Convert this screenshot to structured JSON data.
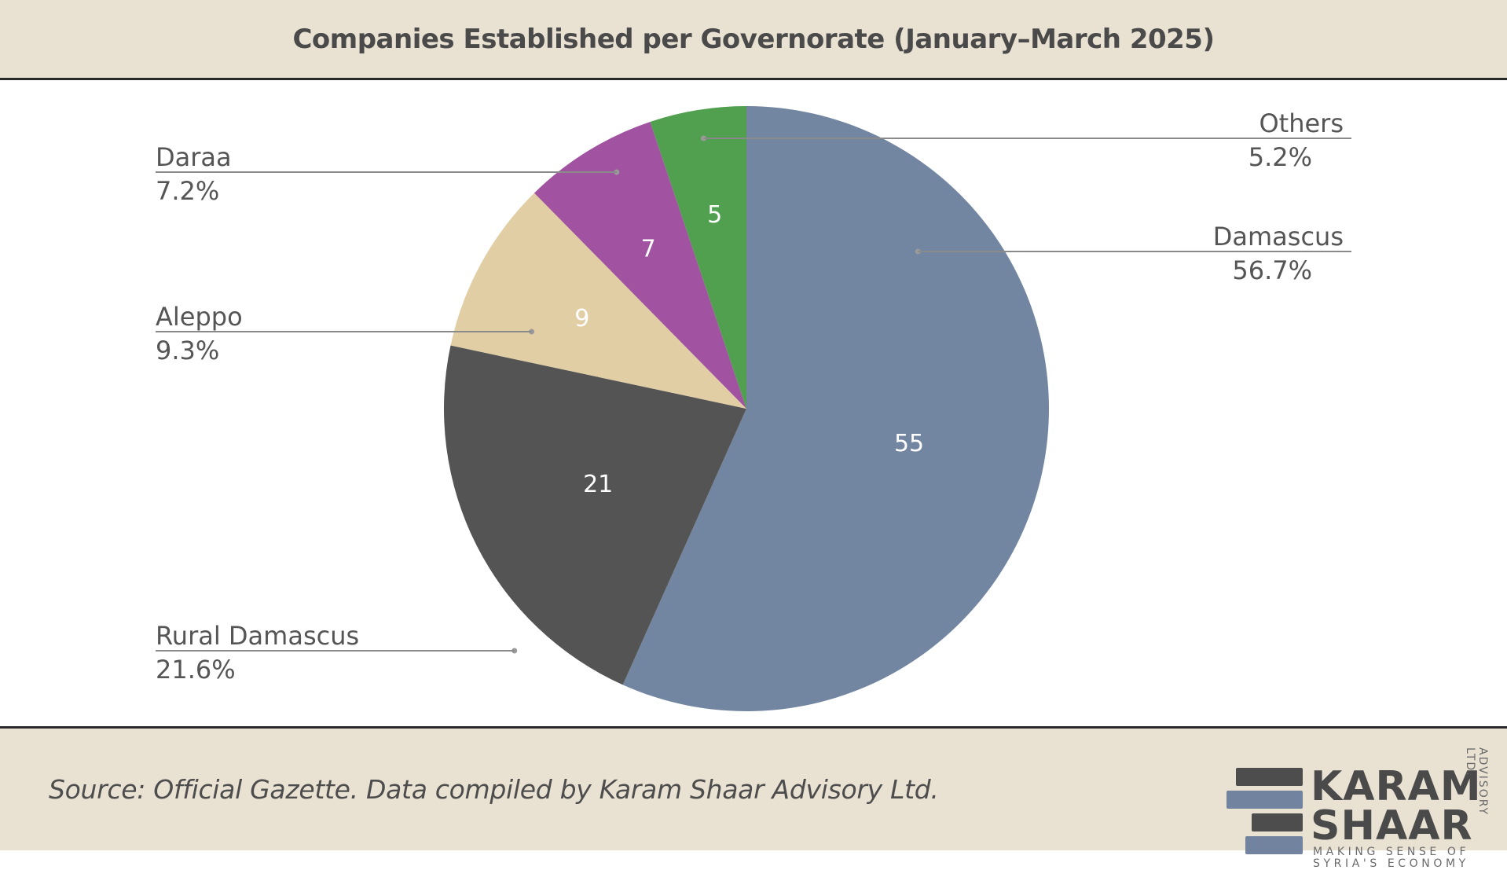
{
  "header": {
    "title": "Companies Established per Governorate (January–March 2025)"
  },
  "footer": {
    "source": "Source: Official Gazette. Data compiled by Karam Shaar Advisory Ltd.",
    "logo": {
      "line1": "KARAM",
      "line2": "SHAAR",
      "tagline1": "MAKING SENSE OF",
      "tagline2": "SYRIA'S ECONOMY",
      "vertical": "ADVISORY LTD."
    }
  },
  "colors": {
    "header_bg": "#e9e2d3",
    "logo_dark": "#4d4d4d",
    "logo_blue": "#7283a0"
  },
  "chart_data": {
    "type": "pie",
    "title": "Companies Established per Governorate (January–March 2025)",
    "start_angle": "12 o'clock",
    "direction": "clockwise",
    "slices": [
      {
        "label": "Damascus",
        "value": 55,
        "percent": "56.7%",
        "color": "#7386a1"
      },
      {
        "label": "Rural Damascus",
        "value": 21,
        "percent": "21.6%",
        "color": "#545454"
      },
      {
        "label": "Aleppo",
        "value": 9,
        "percent": "9.3%",
        "color": "#e2cea4"
      },
      {
        "label": "Daraa",
        "value": 7,
        "percent": "7.2%",
        "color": "#a153a1"
      },
      {
        "label": "Others",
        "value": 5,
        "percent": "5.2%",
        "color": "#50a050"
      }
    ]
  }
}
